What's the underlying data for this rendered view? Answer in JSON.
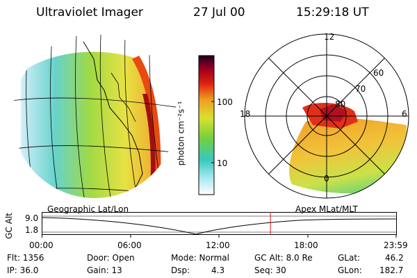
{
  "header": {
    "instrument": "Ultraviolet Imager",
    "date": "27 Jul 00",
    "time": "15:29:18 UT"
  },
  "colorbar": {
    "label": "photon cm⁻²s⁻¹",
    "ticks": [
      "100",
      "10"
    ]
  },
  "left_panel": {
    "caption": "Geographic Lat/Lon"
  },
  "right_panel": {
    "caption": "Apex MLat/MLT",
    "mlt_labels": {
      "top": "12",
      "bottom": "0",
      "left": "18",
      "right": "6"
    },
    "mlat_labels": [
      "60",
      "70",
      "80"
    ]
  },
  "timeline": {
    "ylabel": "GC Alt",
    "yticks": [
      "9.0",
      "1.8"
    ],
    "xticks": [
      "00:00",
      "06:00",
      "12:00",
      "18:00",
      "23:59"
    ],
    "current_time_fraction": 0.6453
  },
  "info": {
    "flt": "Flt: 1356",
    "ip": "IP: 36.0",
    "door": "Door: Open",
    "gain": "Gain: 13",
    "mode": "Mode: Normal",
    "dsp_label": "Dsp:",
    "dsp_value": "4.3",
    "gcalt": "GC Alt: 8.0 Re",
    "seq": "Seq: 30",
    "glat_label": "GLat:",
    "glat_value": "46.2",
    "glon_label": "GLon:",
    "glon_value": "182.7"
  }
}
